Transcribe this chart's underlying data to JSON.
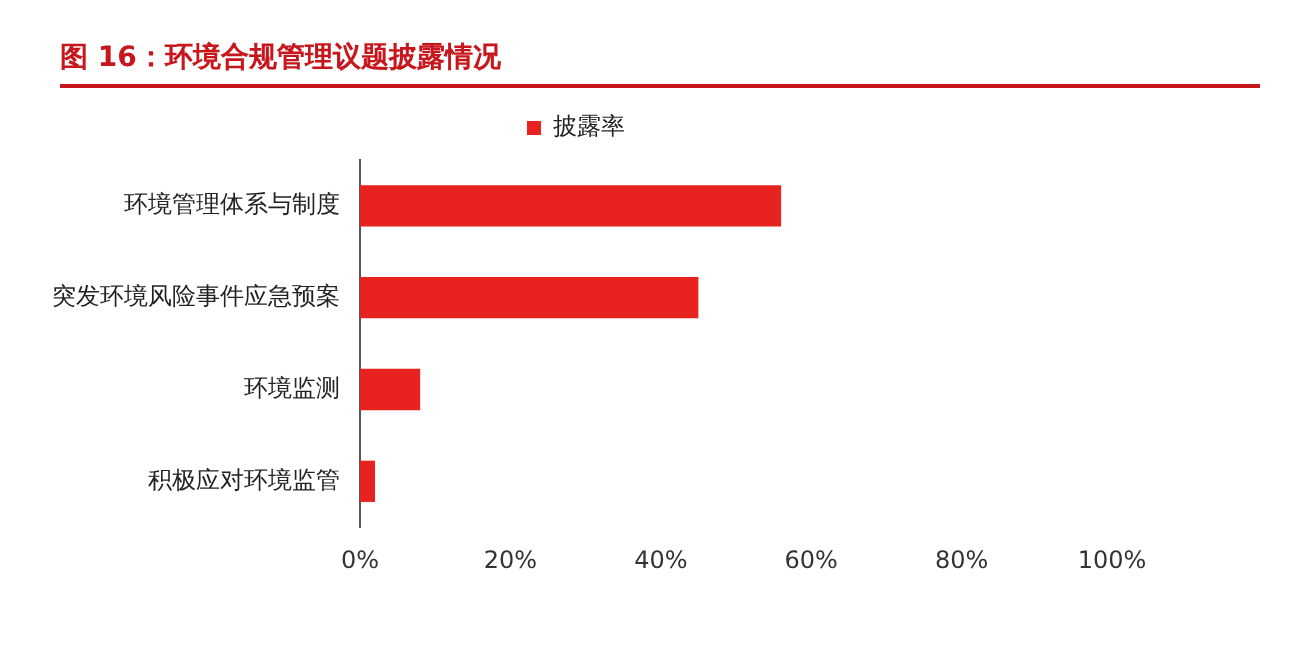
{
  "chart_data": {
    "type": "bar",
    "orientation": "horizontal",
    "title": "图 16：环境合规管理议题披露情况",
    "categories": [
      "环境管理体系与制度",
      "突发环境风险事件应急预案",
      "环境监测",
      "积极应对环境监管"
    ],
    "series": [
      {
        "name": "披露率",
        "color": "#e8231f",
        "values": [
          56,
          45,
          8,
          2
        ]
      }
    ],
    "xlim": [
      0,
      100
    ],
    "xticks": [
      {
        "value": 0,
        "label": "0%"
      },
      {
        "value": 20,
        "label": "20%"
      },
      {
        "value": 40,
        "label": "40%"
      },
      {
        "value": 60,
        "label": "60%"
      },
      {
        "value": 80,
        "label": "80%"
      },
      {
        "value": 100,
        "label": "100%"
      }
    ],
    "grid": false,
    "legend": "top"
  }
}
